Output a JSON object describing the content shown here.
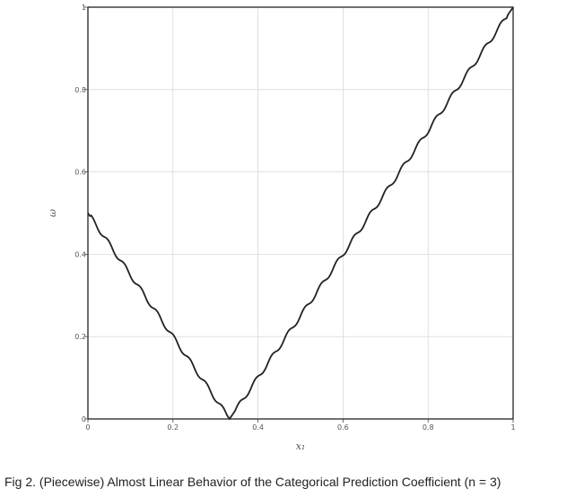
{
  "caption": "Fig 2. (Piecewise) Almost Linear Behavior of the Categorical Prediction Coefficient (n = 3)",
  "chart_data": {
    "type": "line",
    "xlabel": "x₁",
    "ylabel": "ω",
    "xlim": [
      0,
      1
    ],
    "ylim": [
      0,
      1
    ],
    "xticks": [
      0,
      0.2,
      0.4,
      0.6,
      0.8,
      1
    ],
    "xtick_labels": [
      "0",
      "0.2",
      "0.4",
      "0.6",
      "0.8",
      "1"
    ],
    "yticks": [
      0,
      0.2,
      0.4,
      0.6,
      0.8,
      1
    ],
    "ytick_labels": [
      "0",
      "0.2",
      "0.4",
      "0.6",
      "0.8",
      "1"
    ],
    "grid": true,
    "line_color": "#222222",
    "grid_color": "#d9d9d9",
    "series": [
      {
        "x": [
          0,
          0.333,
          1
        ],
        "y": [
          0.5,
          0,
          1
        ]
      }
    ]
  }
}
